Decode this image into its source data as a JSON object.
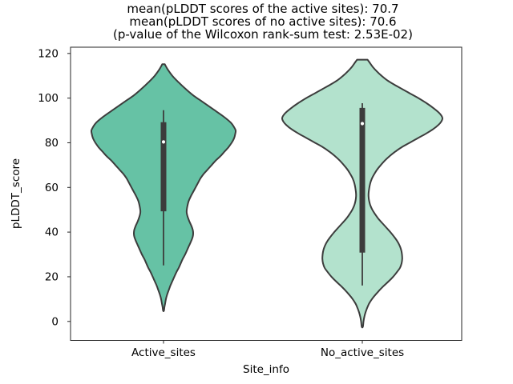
{
  "title": {
    "line1": "mean(pLDDT scores of the active sites): 70.7",
    "line2": "mean(pLDDT scores of no active sites): 70.6",
    "line3": "(p-value of the Wilcoxon rank-sum test: 2.53E-02)"
  },
  "chart_data": {
    "type": "violin",
    "xlabel": "Site_info",
    "ylabel": "pLDDT_score",
    "categories": [
      "Active_sites",
      "No_active_sites"
    ],
    "yticks": [
      0,
      20,
      40,
      60,
      80,
      100,
      120
    ],
    "ylim": [
      -8.5,
      122.8
    ],
    "legend": "none",
    "grid": false,
    "stats": {
      "mean_active_sites": 70.7,
      "mean_no_active_sites": 70.6,
      "wilcoxon_rank_sum_p_value": "2.53E-02"
    },
    "style": {
      "edge_color": "#3c3c3c",
      "box_color": "#3c3c3c",
      "median_dot_color": "#ffffff",
      "spine_color": "#262626",
      "text_color": "#000000",
      "background": "#ffffff"
    },
    "series": [
      {
        "name": "Active_sites",
        "fill": "#66c2a5",
        "median": 80.4,
        "box_iqr": [
          49.3,
          89.2
        ],
        "whiskers": [
          25.1,
          94.6
        ],
        "violin_range": [
          4.8,
          115.2
        ],
        "profile": [
          [
            115.2,
            1.5
          ],
          [
            113,
            5
          ],
          [
            110,
            11
          ],
          [
            107,
            19
          ],
          [
            104,
            28
          ],
          [
            101,
            38
          ],
          [
            98,
            50
          ],
          [
            95,
            62
          ],
          [
            92,
            74
          ],
          [
            89,
            84
          ],
          [
            87,
            88
          ],
          [
            85.5,
            90
          ],
          [
            84,
            89.5
          ],
          [
            82,
            88
          ],
          [
            80,
            85
          ],
          [
            78,
            81
          ],
          [
            76,
            76
          ],
          [
            74,
            71
          ],
          [
            72,
            65
          ],
          [
            70,
            60
          ],
          [
            68,
            55
          ],
          [
            66,
            50
          ],
          [
            64,
            46
          ],
          [
            62,
            43
          ],
          [
            60,
            40
          ],
          [
            58,
            37
          ],
          [
            56,
            34
          ],
          [
            54,
            31.5
          ],
          [
            52,
            30
          ],
          [
            50,
            29
          ],
          [
            48.5,
            29
          ],
          [
            47,
            30
          ],
          [
            45,
            32
          ],
          [
            43,
            34.5
          ],
          [
            41,
            36.5
          ],
          [
            39.5,
            37
          ],
          [
            38,
            36.5
          ],
          [
            36,
            34.5
          ],
          [
            34,
            32
          ],
          [
            32,
            29.5
          ],
          [
            30,
            27
          ],
          [
            28,
            24
          ],
          [
            26,
            21.5
          ],
          [
            24,
            19
          ],
          [
            22,
            16
          ],
          [
            20,
            13.5
          ],
          [
            18,
            11
          ],
          [
            16,
            8.5
          ],
          [
            14,
            6.5
          ],
          [
            12,
            4.5
          ],
          [
            10,
            3
          ],
          [
            8,
            2
          ],
          [
            6.5,
            1.2
          ],
          [
            4.8,
            0.5
          ]
        ]
      },
      {
        "name": "No_active_sites",
        "fill": "#b3e2cd",
        "median": 88.6,
        "box_iqr": [
          30.8,
          95.6
        ],
        "whiskers": [
          16.1,
          97.7
        ],
        "violin_range": [
          -2.4,
          117.2
        ],
        "profile": [
          [
            117.2,
            6.5
          ],
          [
            116,
            9
          ],
          [
            114,
            13
          ],
          [
            112,
            18
          ],
          [
            110,
            24
          ],
          [
            108,
            31
          ],
          [
            106,
            40
          ],
          [
            104,
            50
          ],
          [
            102,
            60
          ],
          [
            100,
            70
          ],
          [
            98,
            79
          ],
          [
            96,
            87
          ],
          [
            94,
            94
          ],
          [
            92.5,
            98
          ],
          [
            91,
            100
          ],
          [
            89.5,
            98.5
          ],
          [
            88,
            95
          ],
          [
            86,
            88
          ],
          [
            84,
            79
          ],
          [
            82,
            69
          ],
          [
            80,
            59
          ],
          [
            78,
            49
          ],
          [
            76,
            41
          ],
          [
            74,
            34
          ],
          [
            72,
            28
          ],
          [
            70,
            23
          ],
          [
            68,
            18.5
          ],
          [
            66,
            15
          ],
          [
            64,
            12
          ],
          [
            62,
            10
          ],
          [
            60,
            8.8
          ],
          [
            58,
            8
          ],
          [
            56,
            7.8
          ],
          [
            54,
            8.5
          ],
          [
            52,
            10
          ],
          [
            50,
            12.5
          ],
          [
            48,
            16
          ],
          [
            46,
            20
          ],
          [
            44,
            25
          ],
          [
            42,
            30
          ],
          [
            40,
            35
          ],
          [
            38,
            39.5
          ],
          [
            36,
            43.5
          ],
          [
            34,
            46.5
          ],
          [
            32,
            48.5
          ],
          [
            30,
            49.5
          ],
          [
            28,
            49.8
          ],
          [
            26,
            49
          ],
          [
            24,
            47
          ],
          [
            22,
            43
          ],
          [
            20,
            38.5
          ],
          [
            18,
            33
          ],
          [
            16,
            27
          ],
          [
            14,
            21.5
          ],
          [
            12,
            16.5
          ],
          [
            10,
            12
          ],
          [
            8,
            8.5
          ],
          [
            6,
            6
          ],
          [
            4,
            4
          ],
          [
            2,
            2.5
          ],
          [
            0,
            1.5
          ],
          [
            -2.4,
            0.7
          ]
        ]
      }
    ]
  }
}
